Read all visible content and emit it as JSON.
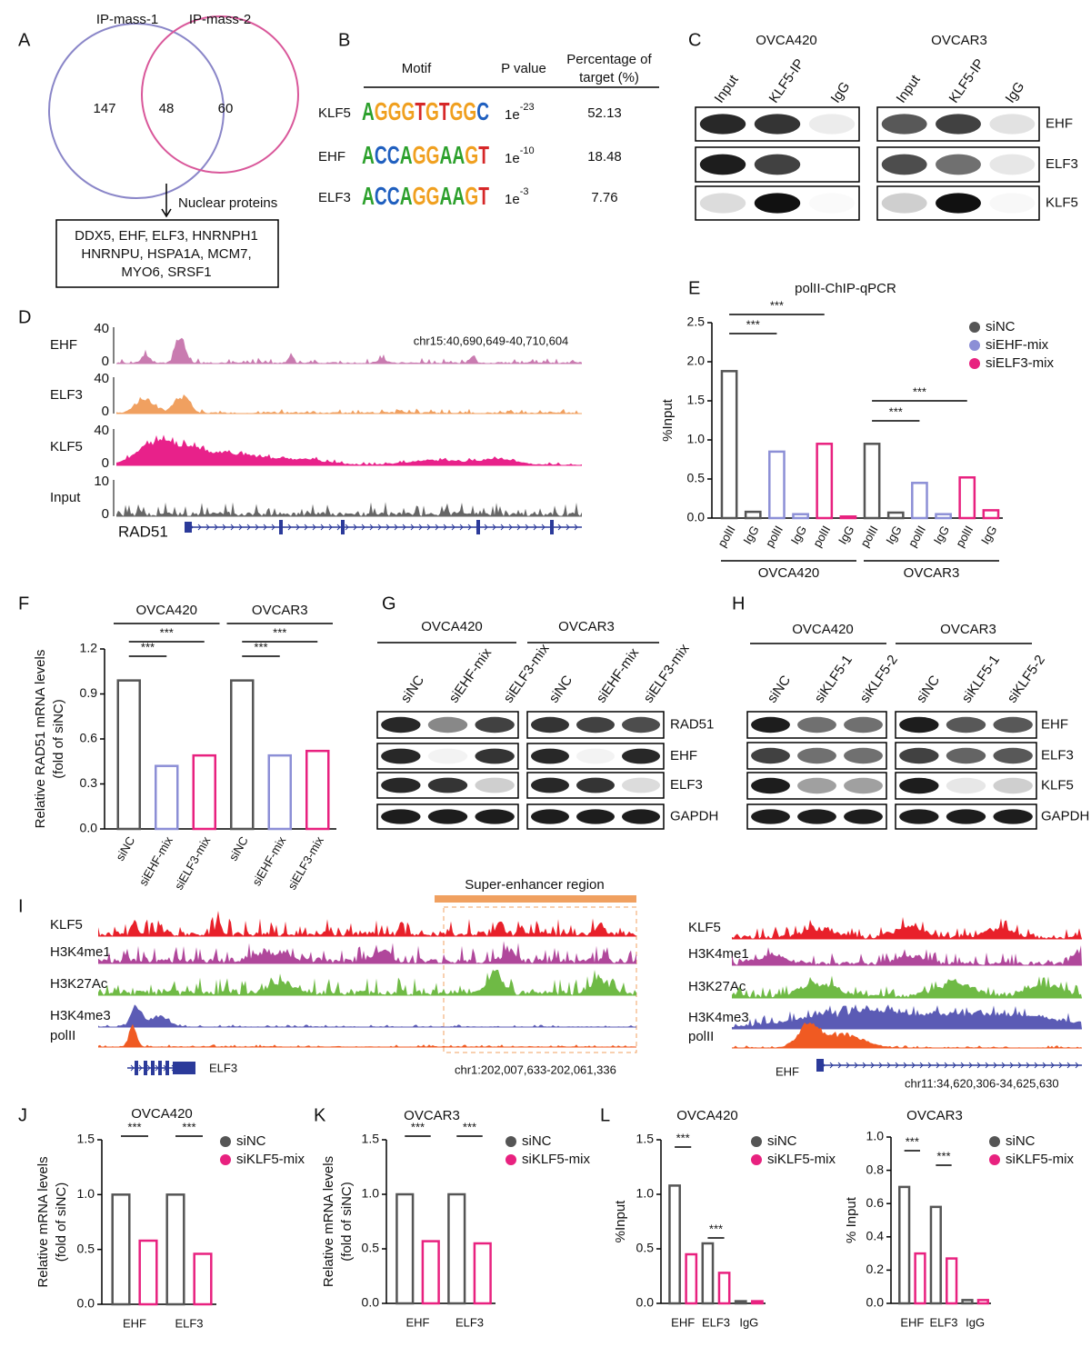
{
  "panel_labels": [
    "A",
    "B",
    "C",
    "D",
    "E",
    "F",
    "G",
    "H",
    "I",
    "J",
    "K",
    "L"
  ],
  "venn": {
    "sets": [
      "IP-mass-1",
      "IP-mass-2"
    ],
    "counts": [
      147,
      48,
      60
    ],
    "arrow_label": "Nuclear proteins",
    "box_lines": [
      "DDX5, EHF, ELF3, HNRNPH1",
      "HNRNPU, HSPA1A, MCM7,",
      "MYO6, SRSF1"
    ]
  },
  "motif_table": {
    "headers": {
      "motif": "Motif",
      "p_value": "P value",
      "percentage": [
        "Percentage of",
        "target (%)"
      ]
    },
    "rows": [
      {
        "name": "KLF5",
        "motif": "AGGGTGTGGC",
        "p_base": "1e",
        "p_exp": "-23",
        "percentage": 52.13
      },
      {
        "name": "EHF",
        "motif": "ACCAGGAAGT",
        "p_base": "1e",
        "p_exp": "-10",
        "percentage": 18.48
      },
      {
        "name": "ELF3",
        "motif": "ACCAGGAAGT",
        "p_base": "1e",
        "p_exp": "-3",
        "percentage": 7.76
      }
    ]
  },
  "coip": {
    "cell_lines": [
      "OVCA420",
      "OVCAR3"
    ],
    "lanes": [
      "Input",
      "KLF5-IP",
      "IgG"
    ],
    "proteins": [
      "EHF",
      "ELF3",
      "KLF5"
    ]
  },
  "tracks_d": {
    "tracks": [
      {
        "name": "EHF",
        "max": 40,
        "min": 0,
        "color": "#c97bb0"
      },
      {
        "name": "ELF3",
        "max": 40,
        "min": 0,
        "color": "#f0a060"
      },
      {
        "name": "KLF5",
        "max": 40,
        "min": 0,
        "color": "#e8218a"
      },
      {
        "name": "Input",
        "max": 10,
        "min": 0,
        "color": "#666666"
      }
    ],
    "region": "chr15:40,690,649-40,710,604",
    "gene": "RAD51"
  },
  "western_g": {
    "cell_lines": [
      "OVCA420",
      "OVCAR3"
    ],
    "lanes": [
      "siNC",
      "siEHF-mix",
      "siELF3-mix"
    ],
    "proteins": [
      "RAD51",
      "EHF",
      "ELF3",
      "GAPDH"
    ]
  },
  "western_h": {
    "cell_lines": [
      "OVCA420",
      "OVCAR3"
    ],
    "lanes": [
      "siNC",
      "siKLF5-1",
      "siKLF5-2"
    ],
    "proteins": [
      "EHF",
      "ELF3",
      "KLF5",
      "GAPDH"
    ]
  },
  "tracks_i": {
    "header": "Super-enhancer region",
    "tracks": [
      {
        "name": "KLF5",
        "color": "#e8202a"
      },
      {
        "name": "H3K4me1",
        "color": "#b0479b"
      },
      {
        "name": "H3K27Ac",
        "color": "#6fba45"
      },
      {
        "name": "H3K4me3",
        "color": "#5b5bb5"
      },
      {
        "name": "polII",
        "color": "#f05a22"
      }
    ],
    "left": {
      "gene": "ELF3",
      "region": "chr1:202,007,633-202,061,336"
    },
    "right": {
      "gene": "EHF",
      "region": "chr11:34,620,306-34,625,630"
    }
  },
  "chart_data": [
    {
      "type": "bar",
      "title": "polII-ChIP-qPCR",
      "ylabel": "%Input",
      "ylim": [
        0,
        2.5
      ],
      "yticks": [
        {
          "value": 0,
          "label": "0.0"
        },
        0.5,
        {
          "value": 1,
          "label": "1.0"
        },
        1.5,
        {
          "value": 2,
          "label": "2.0"
        },
        2.5
      ],
      "categories": [
        "polII",
        "IgG",
        "polII",
        "IgG",
        "polII",
        "IgG",
        "polII",
        "IgG",
        "polII",
        "IgG",
        "polII",
        "IgG"
      ],
      "groups": [
        "OVCA420",
        "OVCAR3"
      ],
      "annotations": [
        "***",
        "***",
        "***",
        "***"
      ],
      "series": [
        {
          "name": "siNC",
          "color": "#555555",
          "values": [
            1.88,
            0.08,
            null,
            null,
            null,
            null,
            0.95,
            0.07,
            null,
            null,
            null,
            null
          ]
        },
        {
          "name": "siEHF-mix",
          "color": "#8c8fd6",
          "values": [
            null,
            null,
            0.85,
            0.05,
            null,
            null,
            null,
            null,
            0.45,
            0.05,
            null,
            null
          ]
        },
        {
          "name": "siELF3-mix",
          "color": "#e8217f",
          "values": [
            null,
            null,
            null,
            null,
            0.95,
            0.02,
            null,
            null,
            null,
            null,
            0.52,
            0.1
          ]
        }
      ]
    },
    {
      "type": "bar",
      "ylabel": [
        "Relative RAD51 mRNA levels",
        "(fold of siNC)"
      ],
      "ylim": [
        0,
        1.2
      ],
      "yticks": [
        {
          "value": 0,
          "label": "0.0"
        },
        0.3,
        0.6,
        0.9,
        1.2
      ],
      "categories": [
        "siNC",
        "siEHF-mix",
        "siELF3-mix",
        "siNC",
        "siEHF-mix",
        "siELF3-mix"
      ],
      "groups": [
        "OVCA420",
        "OVCAR3"
      ],
      "annotations": [
        "***",
        "***",
        "***",
        "***"
      ],
      "series": [
        {
          "name": "siNC",
          "color": "#555555",
          "values": [
            0.99,
            null,
            null,
            0.99,
            null,
            null
          ]
        },
        {
          "name": "siEHF-mix",
          "color": "#8c8fd6",
          "values": [
            null,
            0.42,
            null,
            null,
            0.49,
            null
          ]
        },
        {
          "name": "siELF3-mix",
          "color": "#e8217f",
          "values": [
            null,
            null,
            0.49,
            null,
            null,
            0.52
          ]
        }
      ]
    },
    {
      "type": "bar",
      "title": "OVCA420",
      "ylabel": [
        "Relative mRNA levels",
        "(fold of siNC)"
      ],
      "ylim": [
        0,
        1.5
      ],
      "yticks": [
        {
          "value": 0,
          "label": "0.0"
        },
        0.5,
        {
          "value": 1,
          "label": "1.0"
        },
        1.5
      ],
      "categories": [
        "EHF",
        "ELF3"
      ],
      "annotations": [
        "***",
        "***"
      ],
      "series": [
        {
          "name": "siNC",
          "color": "#555555",
          "values": [
            1.0,
            1.0
          ]
        },
        {
          "name": "siKLF5-mix",
          "color": "#e8217f",
          "values": [
            0.58,
            0.46
          ]
        }
      ]
    },
    {
      "type": "bar",
      "title": "OVCAR3",
      "ylabel": [
        "Relative mRNA levels",
        "(fold of siNC)"
      ],
      "ylim": [
        0,
        1.5
      ],
      "yticks": [
        {
          "value": 0,
          "label": "0.0"
        },
        0.5,
        {
          "value": 1,
          "label": "1.0"
        },
        1.5
      ],
      "categories": [
        "EHF",
        "ELF3"
      ],
      "annotations": [
        "***",
        "***"
      ],
      "series": [
        {
          "name": "siNC",
          "color": "#555555",
          "values": [
            1.0,
            1.0
          ]
        },
        {
          "name": "siKLF5-mix",
          "color": "#e8217f",
          "values": [
            0.57,
            0.55
          ]
        }
      ]
    },
    {
      "type": "bar",
      "title": "OVCA420",
      "ylabel": "%Input",
      "ylim": [
        0,
        1.5
      ],
      "yticks": [
        {
          "value": 0,
          "label": "0.0"
        },
        0.5,
        {
          "value": 1,
          "label": "1.0"
        },
        1.5
      ],
      "categories": [
        "EHF",
        "ELF3",
        "IgG"
      ],
      "annotations": [
        "***",
        "***"
      ],
      "series": [
        {
          "name": "siNC",
          "color": "#555555",
          "values": [
            1.08,
            0.55,
            0.02
          ]
        },
        {
          "name": "siKLF5-mix",
          "color": "#e8217f",
          "values": [
            0.45,
            0.28,
            0.02
          ]
        }
      ]
    },
    {
      "type": "bar",
      "title": "OVCAR3",
      "ylabel": "% Input",
      "ylim": [
        0,
        1
      ],
      "yticks": [
        {
          "value": 0,
          "label": "0.0"
        },
        0.2,
        0.4,
        0.6,
        0.8,
        {
          "value": 1,
          "label": "1.0"
        }
      ],
      "categories": [
        "EHF",
        "ELF3",
        "IgG"
      ],
      "annotations": [
        "***",
        "***"
      ],
      "series": [
        {
          "name": "siNC",
          "color": "#555555",
          "values": [
            0.7,
            0.58,
            0.02
          ]
        },
        {
          "name": "siKLF5-mix",
          "color": "#e8217f",
          "values": [
            0.3,
            0.27,
            0.02
          ]
        }
      ]
    }
  ]
}
